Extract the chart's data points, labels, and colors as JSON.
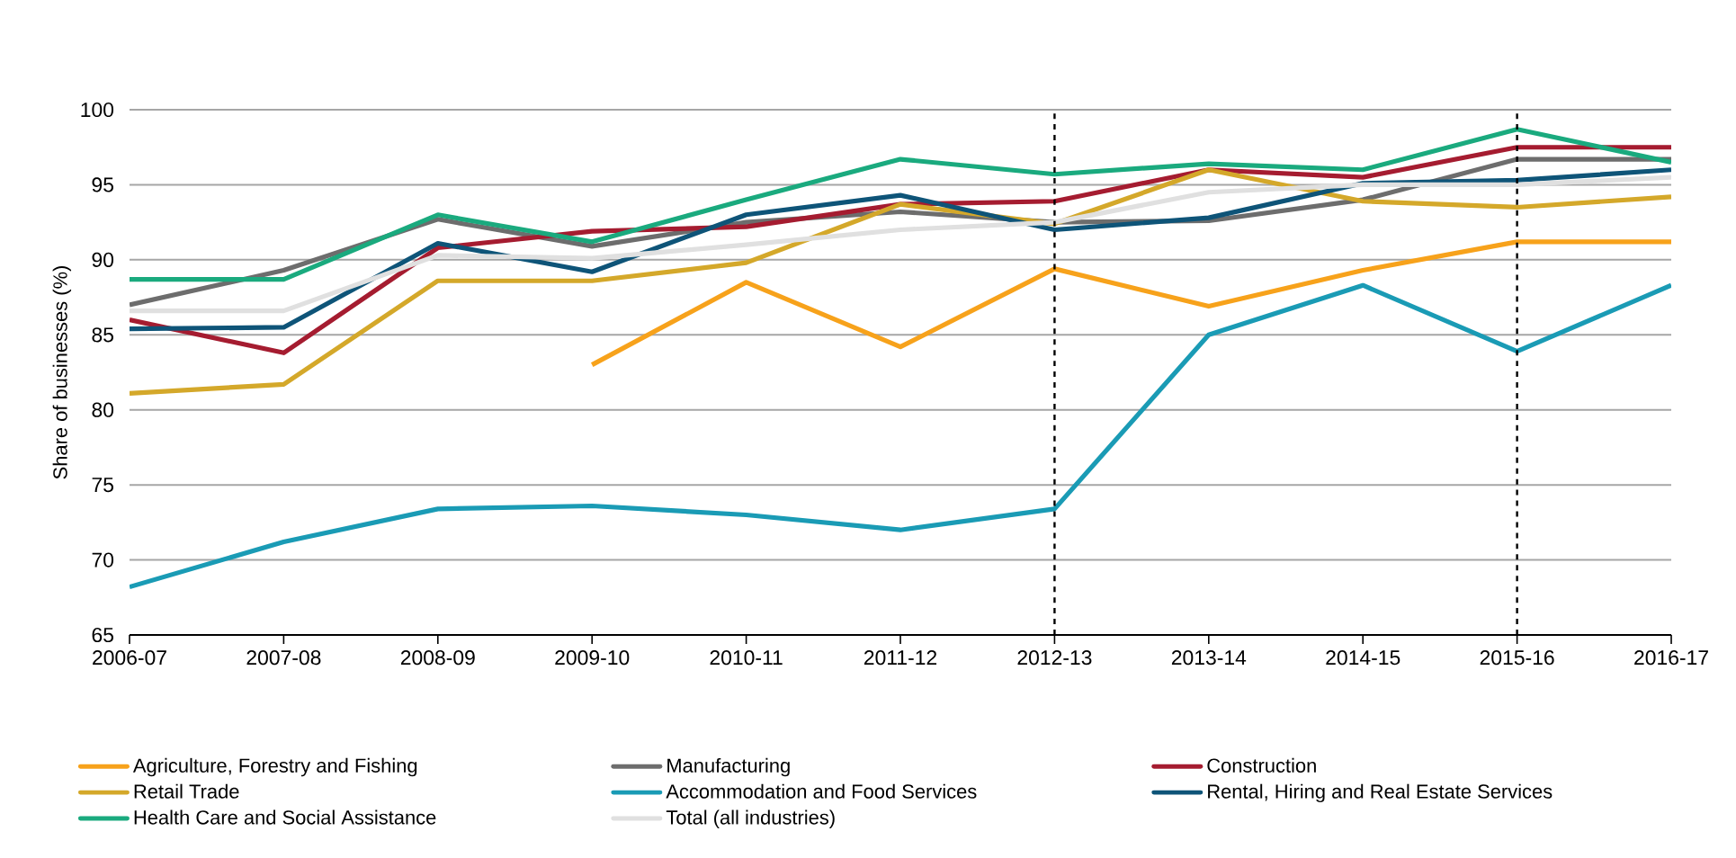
{
  "chart_data": {
    "type": "line",
    "ylabel": "Share of businesses (%)",
    "categories": [
      "2006-07",
      "2007-08",
      "2008-09",
      "2009-10",
      "2010-11",
      "2011-12",
      "2012-13",
      "2013-14",
      "2014-15",
      "2015-16",
      "2016-17"
    ],
    "ylim": [
      65,
      100
    ],
    "yticks": [
      65,
      70,
      75,
      80,
      85,
      90,
      95,
      100
    ],
    "grid": "y",
    "legend": "bottom",
    "marker": "none",
    "line_style": "solid",
    "series": [
      {
        "name": "Agriculture, Forestry and Fishing",
        "color": "#f7a21b",
        "values": [
          null,
          null,
          null,
          83.0,
          88.5,
          84.2,
          89.4,
          86.9,
          89.3,
          91.2,
          91.2
        ]
      },
      {
        "name": "Manufacturing",
        "color": "#6d6d6d",
        "values": [
          87.0,
          89.3,
          92.7,
          90.9,
          92.5,
          93.2,
          92.5,
          92.6,
          94.0,
          96.7,
          96.7
        ]
      },
      {
        "name": "Construction",
        "color": "#a51c30",
        "values": [
          86.0,
          83.8,
          90.8,
          91.9,
          92.2,
          93.7,
          93.9,
          96.0,
          95.5,
          97.5,
          97.5
        ]
      },
      {
        "name": "Retail Trade",
        "color": "#d4a82a",
        "values": [
          81.1,
          81.7,
          88.6,
          88.6,
          89.8,
          93.7,
          92.4,
          96.0,
          93.9,
          93.5,
          94.2
        ]
      },
      {
        "name": "Accommodation and Food Services",
        "color": "#1a9bb5",
        "values": [
          68.2,
          71.2,
          73.4,
          73.6,
          73.0,
          72.0,
          73.4,
          85.0,
          88.3,
          83.9,
          88.3
        ]
      },
      {
        "name": "Rental, Hiring and Real Estate Services",
        "color": "#0e5478",
        "values": [
          85.4,
          85.5,
          91.1,
          89.2,
          93.0,
          94.3,
          92.0,
          92.8,
          95.1,
          95.3,
          96.0
        ]
      },
      {
        "name": "Health Care and Social Assistance",
        "color": "#1aaa7e",
        "values": [
          88.7,
          88.7,
          93.0,
          91.2,
          94.0,
          96.7,
          95.7,
          96.4,
          96.0,
          98.7,
          96.5
        ]
      },
      {
        "name": "Total (all industries)",
        "color": "#e0e0e0",
        "values": [
          86.6,
          86.6,
          90.3,
          90.1,
          91.0,
          92.0,
          92.5,
          94.5,
          95.0,
          95.0,
          95.5
        ]
      }
    ],
    "ref_lines": [
      {
        "axis": "x",
        "value": "2012-13",
        "color": "#000000",
        "line_style": "dashed"
      },
      {
        "axis": "x",
        "value": "2015-16",
        "color": "#000000",
        "line_style": "dashed"
      }
    ]
  }
}
